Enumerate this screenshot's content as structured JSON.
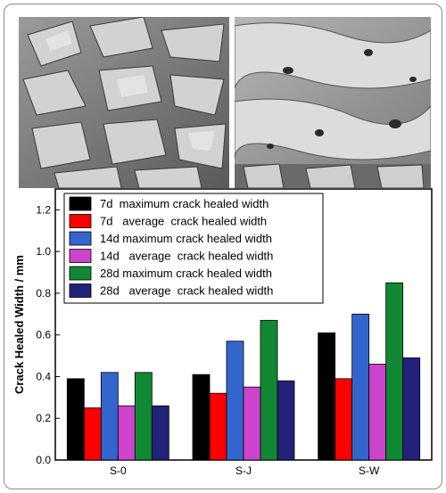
{
  "images": [
    {
      "name": "sem-micrograph-left",
      "description": "grayscale SEM micrograph of layered plate-like crystals"
    },
    {
      "name": "sem-micrograph-right",
      "description": "grayscale SEM micrograph of dense healed surface with pores"
    }
  ],
  "chart_data": {
    "type": "bar",
    "title": "",
    "xlabel": "",
    "ylabel": "Crack Healed Width / mm",
    "categories": [
      "S-0",
      "S-J",
      "S-W"
    ],
    "ylim": [
      0.0,
      1.3
    ],
    "yticks": [
      "0.0",
      "0.2",
      "0.4",
      "0.6",
      "0.8",
      "1.0",
      "1.2"
    ],
    "legend_position": "top",
    "series": [
      {
        "name": "7d  maximum crack healed width",
        "color": "#000000",
        "values": [
          0.39,
          0.41,
          0.61
        ]
      },
      {
        "name": "7d   average  crack healed width",
        "color": "#ff0000",
        "values": [
          0.25,
          0.32,
          0.39
        ]
      },
      {
        "name": "14d maximum crack healed width",
        "color": "#3366cc",
        "values": [
          0.42,
          0.57,
          0.7
        ]
      },
      {
        "name": "14d   average  crack healed width",
        "color": "#cc44cc",
        "values": [
          0.26,
          0.35,
          0.46
        ]
      },
      {
        "name": "28d maximum crack healed width",
        "color": "#118833",
        "values": [
          0.42,
          0.67,
          0.85
        ]
      },
      {
        "name": "28d   average  crack healed width",
        "color": "#22227a",
        "values": [
          0.26,
          0.38,
          0.49
        ]
      }
    ]
  }
}
